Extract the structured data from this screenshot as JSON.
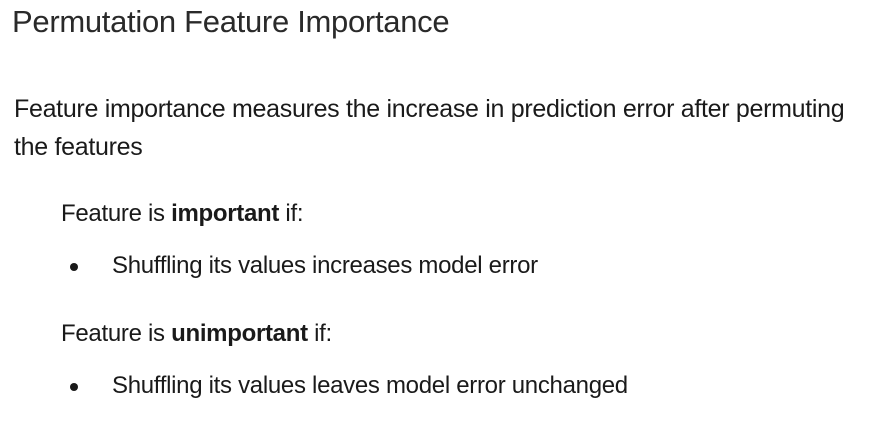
{
  "slide": {
    "title": "Permutation Feature Importance",
    "intro": "Feature importance measures the increase in prediction error after permuting the features",
    "important": {
      "prefix": "Feature is ",
      "keyword": "important",
      "suffix": " if:",
      "bullets": [
        "Shuffling its values increases model error"
      ]
    },
    "unimportant": {
      "prefix": "Feature is ",
      "keyword": "unimportant",
      "suffix": " if:",
      "bullets": [
        "Shuffling its values leaves model error unchanged"
      ]
    }
  }
}
